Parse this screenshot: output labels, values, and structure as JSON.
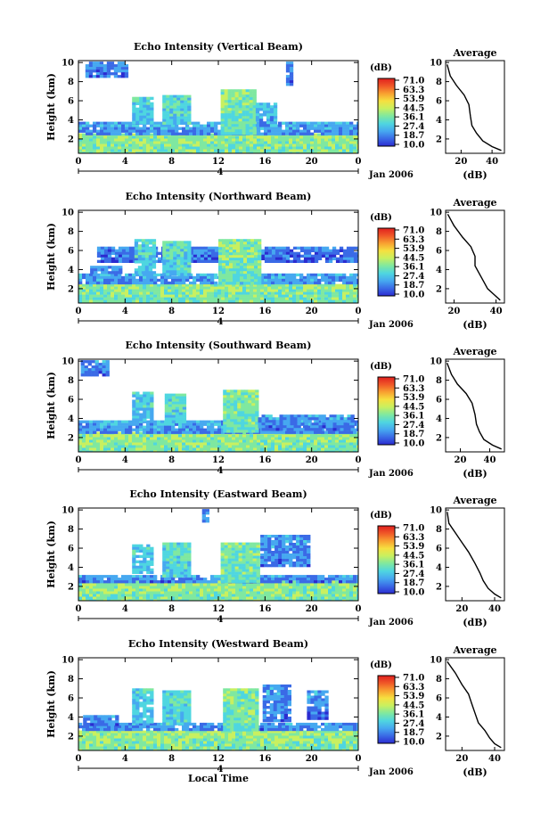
{
  "figure": {
    "shared": {
      "ylabel": "Height (km)",
      "x_ticks": [
        "0",
        "4",
        "8",
        "12",
        "16",
        "20",
        "0"
      ],
      "y_ticks": [
        "2",
        "4",
        "6",
        "8",
        "10"
      ],
      "date_label": "Jan 2006",
      "minor_label": "4",
      "xlabel": "Local Time",
      "colorbar_title": "(dB)",
      "colorbar_ticks": [
        "71.0",
        "63.3",
        "53.9",
        "44.5",
        "36.1",
        "27.4",
        "18.7",
        "10.0"
      ],
      "avg_title": "Average",
      "avg_xlabel": "(dB)",
      "avg_xticks": [
        "20",
        "40"
      ]
    },
    "colormap": [
      "#2b2bd0",
      "#3a6ae6",
      "#46a8f0",
      "#4fd6e0",
      "#7fe8a0",
      "#c8f060",
      "#f6e040",
      "#f8a030",
      "#f05828",
      "#e0201e"
    ]
  },
  "chart_data": [
    {
      "type": "heatmap",
      "title": "Echo Intensity (Vertical Beam)",
      "xlabel": "",
      "ylabel": "Height (km)",
      "xlim": [
        0,
        24
      ],
      "ylim": [
        0.5,
        10.2
      ],
      "zlim": [
        10.0,
        71.0
      ],
      "cloud_regions": [
        {
          "x": [
            0,
            24
          ],
          "y": [
            0.5,
            2.6
          ],
          "level": 0.42
        },
        {
          "x": [
            0,
            24
          ],
          "y": [
            2.6,
            3.8
          ],
          "level": 0.15
        },
        {
          "x": [
            4.6,
            6.2
          ],
          "y": [
            3.8,
            6.4
          ],
          "level": 0.25
        },
        {
          "x": [
            7.2,
            9.4
          ],
          "y": [
            3.6,
            6.6
          ],
          "level": 0.3
        },
        {
          "x": [
            12.2,
            15.2
          ],
          "y": [
            2.6,
            7.2
          ],
          "level": 0.38
        },
        {
          "x": [
            15.2,
            16.8
          ],
          "y": [
            3.4,
            5.8
          ],
          "level": 0.2
        },
        {
          "x": [
            0.6,
            4.2
          ],
          "y": [
            8.6,
            10.1
          ],
          "level": 0.1
        },
        {
          "x": [
            17.8,
            18.4
          ],
          "y": [
            7.8,
            10.1
          ],
          "level": 0.1
        }
      ],
      "average_profile": {
        "xlabel": "(dB)",
        "xlim": [
          10,
          48
        ],
        "ylim": [
          0.5,
          10.2
        ],
        "dB": [
          46,
          40,
          34,
          30,
          27,
          26,
          25,
          22,
          17,
          13,
          11
        ],
        "height": [
          0.8,
          1.2,
          1.8,
          2.6,
          3.4,
          4.4,
          5.6,
          6.6,
          7.6,
          8.6,
          9.8
        ]
      }
    },
    {
      "type": "heatmap",
      "title": "Echo Intensity (Northward Beam)",
      "xlabel": "",
      "ylabel": "Height (km)",
      "xlim": [
        0,
        24
      ],
      "ylim": [
        0.5,
        10.2
      ],
      "zlim": [
        10.0,
        71.0
      ],
      "cloud_regions": [
        {
          "x": [
            0,
            24
          ],
          "y": [
            0.5,
            2.5
          ],
          "level": 0.4
        },
        {
          "x": [
            0,
            24
          ],
          "y": [
            2.5,
            3.6
          ],
          "level": 0.15
        },
        {
          "x": [
            1.6,
            24
          ],
          "y": [
            5.0,
            6.4
          ],
          "level": 0.08
        },
        {
          "x": [
            4.8,
            6.4
          ],
          "y": [
            3.6,
            7.2
          ],
          "level": 0.25
        },
        {
          "x": [
            7.2,
            9.4
          ],
          "y": [
            3.6,
            7.0
          ],
          "level": 0.3
        },
        {
          "x": [
            12.0,
            15.4
          ],
          "y": [
            2.6,
            7.2
          ],
          "level": 0.38
        },
        {
          "x": [
            1.0,
            3.6
          ],
          "y": [
            3.6,
            4.4
          ],
          "level": 0.1
        }
      ],
      "average_profile": {
        "xlabel": "(dB)",
        "xlim": [
          16,
          44
        ],
        "ylim": [
          0.5,
          10.2
        ],
        "dB": [
          42,
          39,
          36,
          34,
          32,
          30,
          30,
          28,
          24,
          20,
          17
        ],
        "height": [
          0.8,
          1.4,
          2.0,
          2.8,
          3.6,
          4.4,
          5.4,
          6.4,
          7.4,
          8.6,
          9.8
        ]
      }
    },
    {
      "type": "heatmap",
      "title": "Echo Intensity (Southward Beam)",
      "xlabel": "",
      "ylabel": "Height (km)",
      "xlim": [
        0,
        24
      ],
      "ylim": [
        0.5,
        10.2
      ],
      "zlim": [
        10.0,
        71.0
      ],
      "cloud_regions": [
        {
          "x": [
            0,
            24
          ],
          "y": [
            0.5,
            2.6
          ],
          "level": 0.42
        },
        {
          "x": [
            0,
            24
          ],
          "y": [
            2.6,
            3.8
          ],
          "level": 0.15
        },
        {
          "x": [
            4.6,
            6.4
          ],
          "y": [
            3.8,
            6.8
          ],
          "level": 0.25
        },
        {
          "x": [
            7.4,
            9.2
          ],
          "y": [
            3.6,
            6.6
          ],
          "level": 0.3
        },
        {
          "x": [
            12.4,
            15.4
          ],
          "y": [
            2.6,
            7.0
          ],
          "level": 0.38
        },
        {
          "x": [
            15.4,
            23.6
          ],
          "y": [
            3.0,
            4.4
          ],
          "level": 0.12
        },
        {
          "x": [
            0.2,
            2.6
          ],
          "y": [
            8.6,
            10.1
          ],
          "level": 0.12
        }
      ],
      "average_profile": {
        "xlabel": "(dB)",
        "xlim": [
          10,
          50
        ],
        "ylim": [
          0.5,
          10.2
        ],
        "dB": [
          48,
          42,
          36,
          33,
          31,
          30,
          28,
          24,
          18,
          14,
          11
        ],
        "height": [
          0.8,
          1.2,
          1.8,
          2.6,
          3.4,
          4.4,
          5.6,
          6.6,
          7.6,
          8.6,
          9.8
        ]
      }
    },
    {
      "type": "heatmap",
      "title": "Echo Intensity (Eastward Beam)",
      "xlabel": "",
      "ylabel": "Height (km)",
      "xlim": [
        0,
        24
      ],
      "ylim": [
        0.5,
        10.2
      ],
      "zlim": [
        10.0,
        71.0
      ],
      "cloud_regions": [
        {
          "x": [
            0,
            24
          ],
          "y": [
            0.5,
            2.6
          ],
          "level": 0.42
        },
        {
          "x": [
            0,
            24
          ],
          "y": [
            2.6,
            3.2
          ],
          "level": 0.12
        },
        {
          "x": [
            4.6,
            6.2
          ],
          "y": [
            3.4,
            6.4
          ],
          "level": 0.25
        },
        {
          "x": [
            7.2,
            9.4
          ],
          "y": [
            3.2,
            6.6
          ],
          "level": 0.3
        },
        {
          "x": [
            12.2,
            15.4
          ],
          "y": [
            2.6,
            6.6
          ],
          "level": 0.38
        },
        {
          "x": [
            15.6,
            19.6
          ],
          "y": [
            4.2,
            7.4
          ],
          "level": 0.12
        },
        {
          "x": [
            10.6,
            11.2
          ],
          "y": [
            8.8,
            10.1
          ],
          "level": 0.1
        }
      ],
      "average_profile": {
        "xlabel": "(dB)",
        "xlim": [
          10,
          46
        ],
        "ylim": [
          0.5,
          10.2
        ],
        "dB": [
          44,
          40,
          36,
          33,
          31,
          28,
          24,
          20,
          16,
          12,
          11
        ],
        "height": [
          0.8,
          1.2,
          1.8,
          2.6,
          3.4,
          4.4,
          5.6,
          6.6,
          7.6,
          8.6,
          9.8
        ]
      }
    },
    {
      "type": "heatmap",
      "title": "Echo Intensity (Westward Beam)",
      "xlabel": "Local Time",
      "ylabel": "Height (km)",
      "xlim": [
        0,
        24
      ],
      "ylim": [
        0.5,
        10.2
      ],
      "zlim": [
        10.0,
        71.0
      ],
      "cloud_regions": [
        {
          "x": [
            0,
            24
          ],
          "y": [
            0.5,
            2.6
          ],
          "level": 0.42
        },
        {
          "x": [
            0,
            24
          ],
          "y": [
            2.6,
            3.4
          ],
          "level": 0.12
        },
        {
          "x": [
            4.6,
            6.4
          ],
          "y": [
            3.4,
            7.0
          ],
          "level": 0.25
        },
        {
          "x": [
            7.2,
            9.4
          ],
          "y": [
            3.4,
            6.8
          ],
          "level": 0.3
        },
        {
          "x": [
            12.4,
            15.2
          ],
          "y": [
            2.6,
            7.0
          ],
          "level": 0.38
        },
        {
          "x": [
            15.8,
            18.0
          ],
          "y": [
            3.6,
            7.4
          ],
          "level": 0.12
        },
        {
          "x": [
            19.6,
            21.4
          ],
          "y": [
            3.8,
            6.8
          ],
          "level": 0.12
        },
        {
          "x": [
            0.4,
            3.2
          ],
          "y": [
            3.2,
            4.2
          ],
          "level": 0.1
        }
      ],
      "average_profile": {
        "xlabel": "(dB)",
        "xlim": [
          10,
          46
        ],
        "ylim": [
          0.5,
          10.2
        ],
        "dB": [
          44,
          40,
          37,
          34,
          30,
          28,
          26,
          24,
          20,
          16,
          11
        ],
        "height": [
          0.8,
          1.2,
          1.8,
          2.6,
          3.4,
          4.4,
          5.4,
          6.4,
          7.4,
          8.6,
          9.8
        ]
      }
    }
  ]
}
